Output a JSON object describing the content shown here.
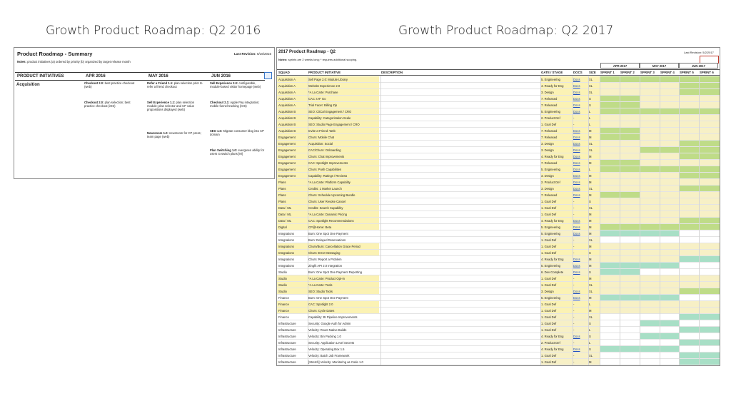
{
  "titles": {
    "left": "Growth Product Roadmap:  Q2 2016",
    "right": "Growth Product Roadmap: Q2 2017"
  },
  "sheet2016": {
    "title": "Product Roadmap - Summary",
    "revision_label": "Last Revision:",
    "revision_value": "6/16/2016",
    "notes_label": "Notes:",
    "notes": "product initiatives (a) ordered by priority (b) organized by target release month",
    "headers": [
      "PRODUCT INITIATIVES",
      "APR 2016",
      "MAY 2016",
      "JUN 2016"
    ],
    "group": "Acquisition",
    "apr": [
      {
        "name": "Checkout 2.0:",
        "desc": "best practice checkout (web)"
      },
      {
        "name": "Checkout 2.0:",
        "desc": "plan selection; best practice checkout (iOS)"
      }
    ],
    "may": [
      {
        "name": "Refer a Friend 1.1:",
        "desc": "plan selection prior to refer a friend checkout"
      },
      {
        "name": "Sell Experience 1.1:",
        "desc": "plan selection module; plan selector and CP value propositions displayed (web)"
      },
      {
        "name": "Newsroom 1.0:",
        "desc": "newsroom for CP press; team page (web)"
      }
    ],
    "jun": [
      {
        "name": "Sell Experience 2.0:",
        "desc": "configurable, module-based visitor homepage (web)"
      },
      {
        "name": "Checkout 2.1:",
        "desc": "Apple Pay integration; mobile funnel tracking (iOS)"
      },
      {
        "name": "SEO 1.0:",
        "desc": "Migrate consumer blog into CP domain"
      },
      {
        "name": "Plan Switching 1.0:",
        "desc": "evergreen ability for users to switch plans [M]"
      }
    ]
  },
  "sheet2017": {
    "title": "2017 Product Roadmap - Q2",
    "revision": "Last Revision: 5/2/2017",
    "notes_label": "Notes:",
    "notes": "sprints are 2 weeks long; * requires additional scoping.",
    "months": [
      "APR 2017",
      "MAY 2017",
      "JUN 2017"
    ],
    "headers": [
      "SQUAD",
      "PRODUCT INITIATIVE",
      "DESCRIPTION",
      "GATE / STAGE",
      "DOCS",
      "SIZE",
      "SPRINT 1",
      "SPRINT 2",
      "SPRINT 3",
      "SPRINT 4",
      "SPRINT 5",
      "SPRINT 6"
    ],
    "colors": {
      "yellow": "#fbf2b4",
      "green": "#bfdc88",
      "olive": "#d7e49a",
      "teal": "#a8dfc6",
      "lightyellow": "#f7f0c6"
    },
    "rows": [
      [
        "Acquisition A",
        "Sell Page 2.0: Module Library",
        "5. Engineering",
        "Docs",
        "XL",
        "ggg"
      ],
      [
        "Acquisition A",
        "Website Experience 2.0",
        "4. Ready for Eng",
        "Docs",
        "XL",
        "yyg"
      ],
      [
        "Acquisition A",
        "*A La Carte: Purchase",
        "3. Design",
        "Docs",
        "XL",
        "yyg"
      ],
      [
        "Acquisition A",
        "CAC: IAF Go",
        "7. Released",
        "Docs",
        "S",
        "gyy"
      ],
      [
        "Acquisition A",
        "Trial Facet: Billing Zip",
        "7. Released",
        "Docs",
        "S",
        "gyy"
      ],
      [
        "Acquisition B",
        "SEO: CitCal Engagement / CRO",
        "5. Engineering",
        "Docs",
        "L",
        "ggg"
      ],
      [
        "Acquisition B",
        "Capability: Categorization Scale",
        "2. Product Def",
        "-",
        "L",
        "yyy"
      ],
      [
        "Acquisition B",
        "SEO: Studio Page Engagement / CRO",
        "1. Goal Def",
        "-",
        "L",
        "yyy"
      ],
      [
        "Acquisition B",
        "Invite-a-Friend: Web",
        "7. Released",
        "Docs",
        "M",
        "gyy"
      ],
      [
        "Engagement",
        "Churn: Mobile Chat",
        "7. Released",
        "Docs",
        "M",
        "gyy"
      ],
      [
        "Engagement",
        "Acquisition: Social",
        "3. Design",
        "Docs",
        "XL",
        "yyg"
      ],
      [
        "Engagement",
        "CAC/Churn: Onboarding",
        "3. Design",
        "Docs",
        "XL",
        "ygg"
      ],
      [
        "Engagement",
        "Churn: Chat Improvements",
        "4. Ready for Eng",
        "Docs",
        "M",
        "yyg"
      ],
      [
        "Engagement",
        "CAC: Spotlight Improvements",
        "7. Released",
        "Docs",
        "M",
        "gyy"
      ],
      [
        "Engagement",
        "Churn: Push Capabilities",
        "5. Engineering",
        "Docs",
        "L",
        "ggg"
      ],
      [
        "Engagement",
        "Capability: Ratings / Reviews",
        "3. Design",
        "Docs",
        "M",
        "yyg"
      ],
      [
        "Plans",
        "*A La Carte: Platform Capability",
        "2. Product Def",
        "Docs",
        "M",
        "yyy"
      ],
      [
        "Plans",
        "Credits: 1 Market Launch",
        "3. Design",
        "Docs",
        "XL",
        "yyg"
      ],
      [
        "Plans",
        "Churn: Schedule Upcoming Bundle",
        "7. Released",
        "Docs",
        "M",
        "gyy"
      ],
      [
        "Plans",
        "Churn: User Revoke Cancel",
        "1. Goal Def",
        "-",
        "S",
        "yyy"
      ],
      [
        "Data / ML",
        "Credits: Search Capability",
        "1. Goal Def",
        "-",
        "XL",
        "yyy"
      ],
      [
        "Data / ML",
        "*A La Carte: Dynamic Pricing",
        "1. Goal Def",
        "-",
        "M",
        "yyy"
      ],
      [
        "Data / ML",
        "CAC: Spotlight Recommendations",
        "4. Ready for Eng",
        "Docs",
        "M",
        "yyg"
      ],
      [
        "Digital",
        "CP@Home: Beta",
        "5. Engineering",
        "Docs",
        "M",
        "ggg"
      ],
      [
        "Integrations",
        "Burn: One Spot One Payment",
        "5. Engineering",
        "Docs",
        "M",
        "ttw"
      ],
      [
        "Integrations",
        "Burn: Delayed Reservations",
        "1. Goal Def",
        "-",
        "XL",
        "www"
      ],
      [
        "Integrations",
        "Churn/Burn: Cancellation Grace Period",
        "1. Goal Def",
        "-",
        "M",
        "yyy"
      ],
      [
        "Integrations",
        "Churn: Error Messaging",
        "1. Goal Def",
        "-",
        "S",
        "yyy"
      ],
      [
        "Integrations",
        "Churn: Report a Problem",
        "4. Ready for Eng",
        "Docs",
        "M",
        "yyt"
      ],
      [
        "Integrations",
        "Zingfit API 2.0 Integration",
        "5. Engineering",
        "Docs",
        "M",
        "ttw"
      ],
      [
        "Studio",
        "Burn: One Spot One Payment Reporting",
        "6. Dev Complete",
        "Docs",
        "S",
        "tww"
      ],
      [
        "Studio",
        "*A La Carte: Product Opt-In",
        "1. Goal Def",
        "-",
        "M",
        "yyy"
      ],
      [
        "Studio",
        "*A La Carte: Tools",
        "1. Goal Def",
        "-",
        "XL",
        "yyy"
      ],
      [
        "Studio",
        "SEO: Studio Tools",
        "3. Design",
        "Docs",
        "XL",
        "yyg"
      ],
      [
        "Finance",
        "Burn: One Spot One Payment",
        "5. Engineering",
        "Docs",
        "M",
        "ttw"
      ],
      [
        "Finance",
        "CAC: Spotlight 2.0",
        "1. Goal Def",
        "-",
        "L",
        "yyy"
      ],
      [
        "Finance",
        "Churn: Cycle Dates",
        "1. Goal Def",
        "-",
        "M",
        "yyy"
      ],
      [
        "Finance",
        "Capability: BI Pipeline Improvements",
        "1. Goal Def",
        "-",
        "XL",
        "wwt"
      ],
      [
        "Infrastructure",
        "Security: Google Auth for Admin",
        "1. Goal Def",
        "-",
        "S",
        "wtw"
      ],
      [
        "Infrastructure",
        "Velocity: React Native Builds",
        "1. Goal Def",
        "-",
        "L",
        "wwt"
      ],
      [
        "Infrastructure",
        "Velocity: Bin Packing 1.0",
        "4. Ready for Eng",
        "Docs",
        "S",
        "wtw"
      ],
      [
        "Infrastructure",
        "Security: Application Level Secrets",
        "2. Product Def",
        "-",
        "L",
        "wwt"
      ],
      [
        "Infrastructure",
        "Velocity: Operating Box 1.5",
        "4. Ready for Eng",
        "Docs",
        "S",
        "ttw"
      ],
      [
        "Infrastructure",
        "Velocity: Batch Job Framework",
        "1. Goal Def",
        "-",
        "XL",
        "wwt"
      ],
      [
        "Infrastructure",
        "[Stretch] Velocity: Monitoring as Code 1.0",
        "1. Goal Def",
        "-",
        "M",
        "wwt"
      ]
    ]
  }
}
